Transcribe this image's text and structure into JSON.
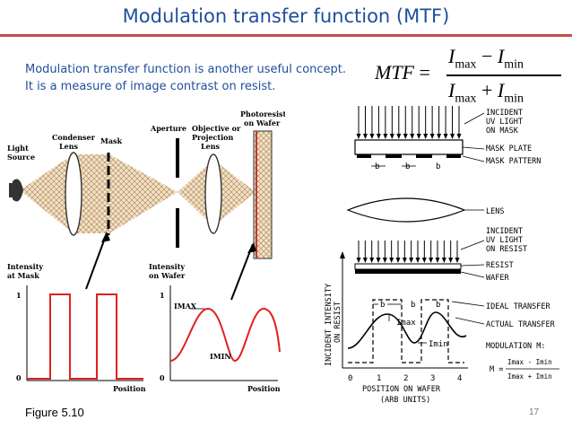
{
  "title": "Modulation transfer function (MTF)",
  "intro": {
    "line1": "Modulation transfer function is another useful concept.",
    "line2": "It is a measure of image contrast on resist."
  },
  "formula": {
    "lhs": "MTF",
    "eq": "=",
    "I": "I",
    "max": "max",
    "min": "min",
    "minus": "−",
    "plus": "+"
  },
  "left_figure": {
    "light_source": [
      "Light",
      "Source"
    ],
    "condenser": [
      "Condenser",
      "Lens"
    ],
    "mask": "Mask",
    "aperture": "Aperture",
    "objective": [
      "Objective or",
      "Projection",
      "Lens"
    ],
    "photoresist": [
      "Photoresist",
      "on Wafer"
    ],
    "intensity_mask": [
      "Intensity",
      "at Mask"
    ],
    "intensity_wafer": [
      "Intensity",
      "on Wafer"
    ],
    "tick_1": "1",
    "tick_0": "0",
    "position": "Position",
    "imax": "IMAX",
    "imin": "IMIN"
  },
  "right_figure": {
    "incident_mask": [
      "INCIDENT",
      "UV LIGHT",
      "ON MASK"
    ],
    "mask_plate": "MASK PLATE",
    "mask_pattern": "MASK PATTERN",
    "lens": "LENS",
    "incident_resist": [
      "INCIDENT",
      "UV LIGHT",
      "ON RESIST"
    ],
    "resist": "RESIST",
    "wafer": "WAFER",
    "b": "b",
    "y_axis": [
      "INCIDENT INTENSITY",
      "ON RESIST"
    ],
    "imax": "Imax",
    "imin": "Imin",
    "ideal": "IDEAL TRANSFER",
    "actual": "ACTUAL TRANSFER",
    "modulation": "MODULATION M:",
    "m_eq": "M =",
    "m_num": "Imax - Imin",
    "m_den": "Imax + Imin",
    "x_ticks": [
      "0",
      "1",
      "2",
      "3",
      "4"
    ],
    "x_axis": [
      "POSITION ON WAFER",
      "(ARB UNITS)"
    ]
  },
  "caption": "Figure 5.10",
  "page_number": "17"
}
